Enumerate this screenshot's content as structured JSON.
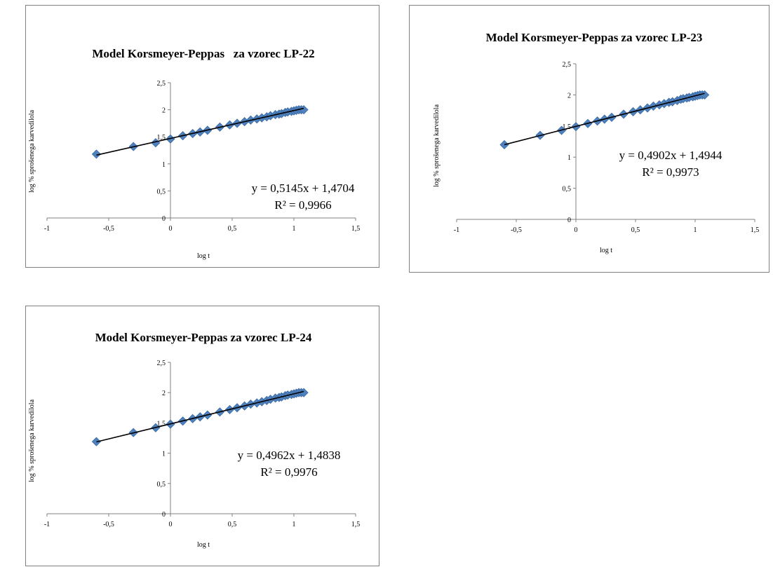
{
  "chart_data": [
    {
      "type": "scatter",
      "title": "Model Korsmeyer-Peppas   za vzorec LP-22",
      "xlabel": "log t",
      "ylabel": "log % sprošenega karvedilola",
      "xlim": [
        -1,
        1.5
      ],
      "ylim": [
        0,
        2.5
      ],
      "xticks": [
        -1,
        -0.5,
        0,
        0.5,
        1,
        1.5
      ],
      "xtick_labels": [
        "-1",
        "-0,5",
        "0",
        "0,5",
        "1",
        "1,5"
      ],
      "yticks": [
        0,
        0.5,
        1,
        1.5,
        2,
        2.5
      ],
      "ytick_labels": [
        "0",
        "0,5",
        "1",
        "1,5",
        "2",
        "2,5"
      ],
      "marker_color": "#4f81bd",
      "series": [
        {
          "x": [
            -0.6,
            -0.3,
            -0.12,
            0.0,
            0.1,
            0.18,
            0.24,
            0.3,
            0.4,
            0.48,
            0.54,
            0.6,
            0.65,
            0.7,
            0.74,
            0.78,
            0.81,
            0.85,
            0.88,
            0.9,
            0.93,
            0.95,
            0.98,
            1.0,
            1.02,
            1.04,
            1.06,
            1.08
          ],
          "y": [
            1.18,
            1.32,
            1.39,
            1.46,
            1.52,
            1.56,
            1.59,
            1.62,
            1.68,
            1.72,
            1.75,
            1.78,
            1.81,
            1.83,
            1.85,
            1.87,
            1.89,
            1.91,
            1.92,
            1.93,
            1.95,
            1.96,
            1.97,
            1.98,
            1.99,
            2.0,
            2.0,
            2.0
          ]
        }
      ],
      "trendline": {
        "slope": 0.5145,
        "intercept": 1.4704,
        "x_range": [
          -0.6,
          1.08
        ],
        "equation": "y = 0,5145x + 1,4704",
        "r2": "R² = 0,9966"
      }
    },
    {
      "type": "scatter",
      "title": "Model Korsmeyer-Peppas za vzorec LP-23",
      "xlabel": "log t",
      "ylabel": "log % sprošenega karvedilola",
      "xlim": [
        -1,
        1.5
      ],
      "ylim": [
        0,
        2.5
      ],
      "xticks": [
        -1,
        -0.5,
        0,
        0.5,
        1,
        1.5
      ],
      "xtick_labels": [
        "-1",
        "-0,5",
        "0",
        "0,5",
        "1",
        "1,5"
      ],
      "yticks": [
        0,
        0.5,
        1,
        1.5,
        2,
        2.5
      ],
      "ytick_labels": [
        "0",
        "0,5",
        "1",
        "1,5",
        "2",
        "2,5"
      ],
      "marker_color": "#4f81bd",
      "series": [
        {
          "x": [
            -0.6,
            -0.3,
            -0.12,
            0.0,
            0.1,
            0.18,
            0.24,
            0.3,
            0.4,
            0.48,
            0.54,
            0.6,
            0.65,
            0.7,
            0.74,
            0.78,
            0.81,
            0.85,
            0.88,
            0.9,
            0.93,
            0.95,
            0.98,
            1.0,
            1.02,
            1.04,
            1.06,
            1.08
          ],
          "y": [
            1.2,
            1.35,
            1.43,
            1.49,
            1.54,
            1.58,
            1.61,
            1.64,
            1.69,
            1.73,
            1.76,
            1.79,
            1.82,
            1.84,
            1.86,
            1.88,
            1.89,
            1.91,
            1.93,
            1.94,
            1.95,
            1.96,
            1.97,
            1.98,
            1.99,
            2.0,
            2.0,
            2.0
          ]
        }
      ],
      "trendline": {
        "slope": 0.4902,
        "intercept": 1.4944,
        "x_range": [
          -0.6,
          1.08
        ],
        "equation": "y = 0,4902x + 1,4944",
        "r2": "R² = 0,9973"
      }
    },
    {
      "type": "scatter",
      "title": "Model Korsmeyer-Peppas za vzorec LP-24",
      "xlabel": "log t",
      "ylabel": "log % sprošenega karvedilola",
      "xlim": [
        -1,
        1.5
      ],
      "ylim": [
        0,
        2.5
      ],
      "xticks": [
        -1,
        -0.5,
        0,
        0.5,
        1,
        1.5
      ],
      "xtick_labels": [
        "-1",
        "-0,5",
        "0",
        "0,5",
        "1",
        "1,5"
      ],
      "yticks": [
        0,
        0.5,
        1,
        1.5,
        2,
        2.5
      ],
      "ytick_labels": [
        "0",
        "0,5",
        "1",
        "1,5",
        "2",
        "2,5"
      ],
      "marker_color": "#4f81bd",
      "series": [
        {
          "x": [
            -0.6,
            -0.3,
            -0.12,
            0.0,
            0.1,
            0.18,
            0.24,
            0.3,
            0.4,
            0.48,
            0.54,
            0.6,
            0.65,
            0.7,
            0.74,
            0.78,
            0.81,
            0.85,
            0.88,
            0.9,
            0.93,
            0.95,
            0.98,
            1.0,
            1.02,
            1.04,
            1.06,
            1.08
          ],
          "y": [
            1.19,
            1.34,
            1.42,
            1.48,
            1.53,
            1.57,
            1.6,
            1.63,
            1.68,
            1.72,
            1.75,
            1.78,
            1.81,
            1.83,
            1.85,
            1.87,
            1.89,
            1.91,
            1.92,
            1.93,
            1.95,
            1.96,
            1.97,
            1.98,
            1.99,
            2.0,
            2.0,
            2.0
          ]
        }
      ],
      "trendline": {
        "slope": 0.4962,
        "intercept": 1.4838,
        "x_range": [
          -0.6,
          1.08
        ],
        "equation": "y = 0,4962x + 1,4838",
        "r2": "R² = 0,9976"
      }
    }
  ]
}
